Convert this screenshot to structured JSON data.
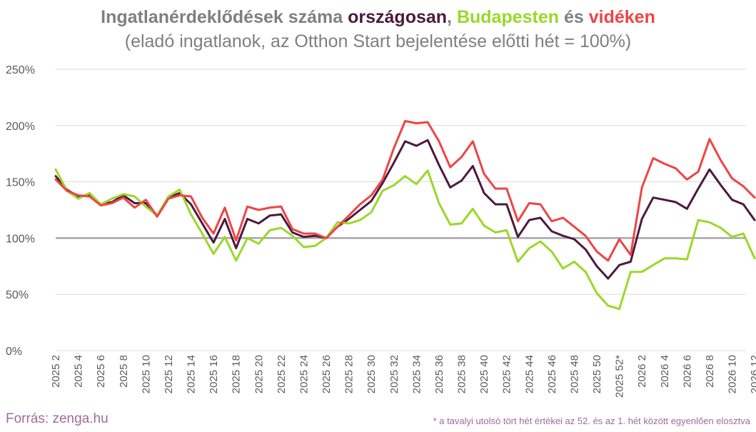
{
  "title": {
    "part1": "Ingatlanérdeklődések száma ",
    "orszagosan": "országosan",
    "comma": ", ",
    "budapesten": "Budapesten",
    "es": " és ",
    "videken": "vidéken"
  },
  "subtitle": "(eladó ingatlanok, az Otthon Start bejelentése előtti hét = 100%)",
  "source": "Forrás: zenga.hu",
  "footnote": "* a tavalyi utolsó tört hét értékei az 52. és az 1. hét között egyenlően elosztva",
  "colors": {
    "orszagosan": "#4b1a3f",
    "budapesten": "#9ad828",
    "videken": "#ef4444",
    "reference": "#a6a6a6",
    "grid": "#d9d9d9"
  },
  "chart_data": {
    "type": "line",
    "ylim": [
      0,
      250
    ],
    "yticks": [
      "0%",
      "50%",
      "100%",
      "150%",
      "200%",
      "250%"
    ],
    "reference_line": 100,
    "x": [
      "2025 2",
      "2025 3",
      "2025 4",
      "2025 5",
      "2025 6",
      "2025 7",
      "2025 8",
      "2025 9",
      "2025 10",
      "2025 11",
      "2025 12",
      "2025 13",
      "2025 14",
      "2025 15",
      "2025 16",
      "2025 17",
      "2025 18",
      "2025 19",
      "2025 20",
      "2025 21",
      "2025 22",
      "2025 23",
      "2025 24",
      "2025 25",
      "2025 26",
      "2025 27",
      "2025 28",
      "2025 29",
      "2025 30",
      "2025 31",
      "2025 32",
      "2025 33",
      "2025 34",
      "2025 35",
      "2025 36",
      "2025 37",
      "2025 38",
      "2025 39",
      "2025 40",
      "2025 41",
      "2025 42",
      "2025 43",
      "2025 44",
      "2025 45",
      "2025 46",
      "2025 47",
      "2025 48",
      "2025 49",
      "2025 50",
      "2025 51",
      "2025 52*",
      "2026 1",
      "2026 2",
      "2026 3",
      "2026 4",
      "2026 5",
      "2026 6",
      "2026 7",
      "2026 8",
      "2026 9",
      "2026 10",
      "2026 11",
      "2026 12"
    ],
    "xtick_labels": [
      "2025 2",
      "2025 4",
      "2025 6",
      "2025 8",
      "2025 10",
      "2025 12",
      "2025 14",
      "2025 16",
      "2025 18",
      "2025 20",
      "2025 22",
      "2025 24",
      "2025 26",
      "2025 28",
      "2025 30",
      "2025 32",
      "2025 34",
      "2025 36",
      "2025 38",
      "2025 40",
      "2025 42",
      "2025 44",
      "2025 46",
      "2025 48",
      "2025 50",
      "2025 52*",
      "2026 2",
      "2026 4",
      "2026 6",
      "2026 8",
      "2026 10",
      "2026 12"
    ],
    "series": [
      {
        "name": "országosan",
        "color": "#4b1a3f",
        "values": [
          155,
          143,
          137,
          138,
          130,
          132,
          138,
          131,
          131,
          120,
          136,
          140,
          130,
          113,
          96,
          117,
          91,
          117,
          113,
          120,
          121,
          105,
          101,
          102,
          100,
          110,
          117,
          125,
          133,
          149,
          167,
          186,
          182,
          187,
          165,
          145,
          151,
          164,
          140,
          130,
          130,
          101,
          116,
          118,
          106,
          102,
          99,
          90,
          75,
          64,
          76,
          79,
          117,
          136,
          134,
          132,
          126,
          144,
          161,
          147,
          134,
          130,
          116
        ]
      },
      {
        "name": "Budapesten",
        "color": "#9ad828",
        "values": [
          161,
          142,
          135,
          140,
          130,
          135,
          139,
          137,
          128,
          120,
          137,
          143,
          121,
          104,
          86,
          101,
          80,
          100,
          95,
          107,
          109,
          102,
          92,
          93,
          100,
          114,
          113,
          116,
          123,
          142,
          147,
          155,
          148,
          160,
          131,
          112,
          113,
          126,
          111,
          105,
          107,
          79,
          91,
          97,
          88,
          73,
          79,
          70,
          51,
          40,
          37,
          70,
          70,
          76,
          82,
          82,
          81,
          116,
          114,
          109,
          101,
          104,
          82
        ]
      },
      {
        "name": "vidéken",
        "color": "#ef4444",
        "values": [
          152,
          142,
          138,
          137,
          129,
          131,
          136,
          127,
          134,
          119,
          135,
          138,
          137,
          118,
          104,
          127,
          98,
          128,
          125,
          127,
          128,
          108,
          104,
          104,
          100,
          110,
          120,
          130,
          138,
          152,
          180,
          204,
          202,
          203,
          186,
          163,
          172,
          186,
          157,
          144,
          144,
          115,
          131,
          130,
          115,
          118,
          110,
          102,
          88,
          80,
          99,
          85,
          145,
          171,
          166,
          162,
          152,
          159,
          188,
          169,
          153,
          146,
          136
        ]
      }
    ]
  }
}
